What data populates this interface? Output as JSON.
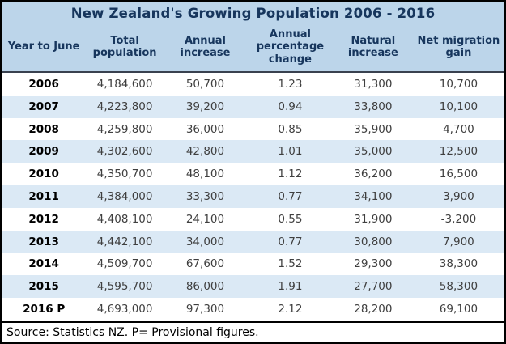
{
  "chart_data": {
    "type": "table",
    "title": "New Zealand's Growing Population 2006 - 2016",
    "columns": [
      "Year to June",
      "Total population",
      "Annual increase",
      "Annual percentage change",
      "Natural increase",
      "Net migration gain"
    ],
    "rows": [
      [
        "2006",
        "4,184,600",
        "50,700",
        "1.23",
        "31,300",
        "10,700"
      ],
      [
        "2007",
        "4,223,800",
        "39,200",
        "0.94",
        "33,800",
        "10,100"
      ],
      [
        "2008",
        "4,259,800",
        "36,000",
        "0.85",
        "35,900",
        "4,700"
      ],
      [
        "2009",
        "4,302,600",
        "42,800",
        "1.01",
        "35,000",
        "12,500"
      ],
      [
        "2010",
        "4,350,700",
        "48,100",
        "1.12",
        "36,200",
        "16,500"
      ],
      [
        "2011",
        "4,384,000",
        "33,300",
        "0.77",
        "34,100",
        "3,900"
      ],
      [
        "2012",
        "4,408,100",
        "24,100",
        "0.55",
        "31,900",
        "-3,200"
      ],
      [
        "2013",
        "4,442,100",
        "34,000",
        "0.77",
        "30,800",
        "7,900"
      ],
      [
        "2014",
        "4,509,700",
        "67,600",
        "1.52",
        "29,300",
        "38,300"
      ],
      [
        "2015",
        "4,595,700",
        "86,000",
        "1.91",
        "27,700",
        "58,300"
      ],
      [
        "2016 P",
        "4,693,000",
        "97,300",
        "2.12",
        "28,200",
        "69,100"
      ]
    ],
    "source_note": "Source: Statistics NZ. P= Provisional figures.",
    "layout": {
      "striped": true,
      "first_data_row_background": "white",
      "legend": "none",
      "grid": "off"
    },
    "colors": {
      "header_bg": "#BCD5EA",
      "stripe_bg": "#DBE9F5",
      "header_text": "#17365D",
      "body_text": "#3F3F3F",
      "year_text": "#000000",
      "rule": "#000000"
    }
  }
}
